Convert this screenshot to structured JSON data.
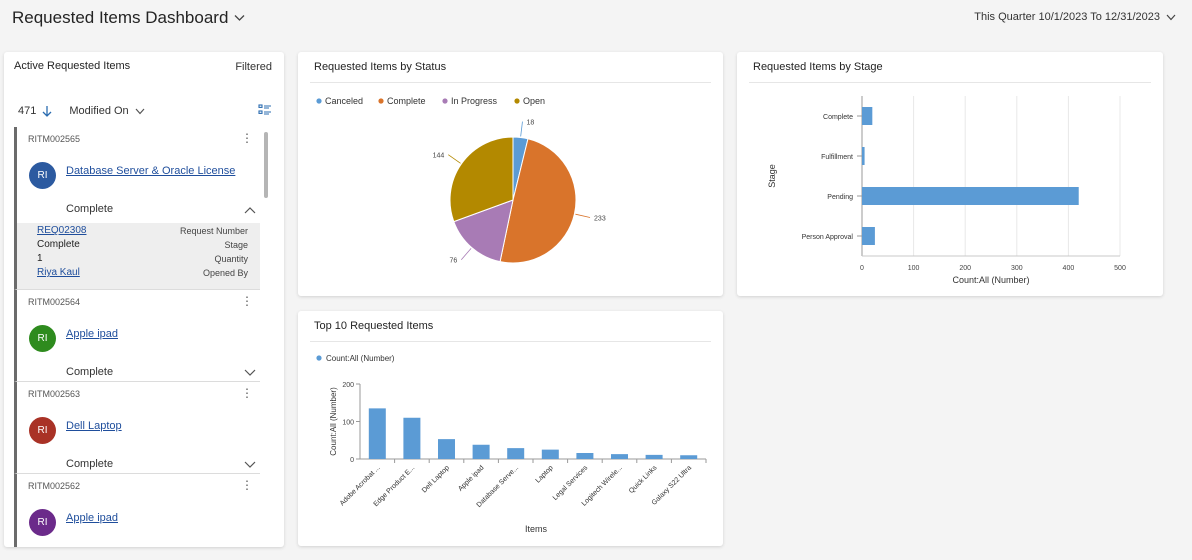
{
  "header": {
    "title": "Requested Items Dashboard",
    "date_range": "This Quarter 10/1/2023 To 12/31/2023"
  },
  "list": {
    "title": "Active Requested Items",
    "filter_label": "Filtered",
    "count": "471",
    "sort_field": "Modified On",
    "items": [
      {
        "number": "RITM002565",
        "initials": "RI",
        "avatar_color": "#2c5aa0",
        "title": "Database Server & Oracle License",
        "state": "Complete",
        "expanded": true,
        "details": [
          {
            "value": "REQ02308",
            "label": "Request Number",
            "link": true
          },
          {
            "value": "Complete",
            "label": "Stage",
            "link": false
          },
          {
            "value": "1",
            "label": "Quantity",
            "link": false
          },
          {
            "value": "Riya Kaul",
            "label": "Opened By",
            "link": true
          }
        ]
      },
      {
        "number": "RITM002564",
        "initials": "RI",
        "avatar_color": "#2e8b1e",
        "title": "Apple ipad",
        "state": "Complete",
        "expanded": false
      },
      {
        "number": "RITM002563",
        "initials": "RI",
        "avatar_color": "#a93226",
        "title": "Dell Laptop",
        "state": "Complete",
        "expanded": false
      },
      {
        "number": "RITM002562",
        "initials": "RI",
        "avatar_color": "#6b2a8a",
        "title": "Apple ipad",
        "state": "",
        "expanded": false
      }
    ]
  },
  "colors": {
    "bar": "#5b9bd5"
  },
  "chart_data": [
    {
      "type": "pie",
      "title": "Requested Items by Status",
      "categories": [
        "Canceled",
        "Complete",
        "In Progress",
        "Open"
      ],
      "values": [
        18,
        233,
        76,
        144
      ],
      "colors": [
        "#5b9bd5",
        "#d9742b",
        "#a87bb5",
        "#b38900"
      ],
      "legend": "top-left"
    },
    {
      "type": "bar",
      "orientation": "horizontal",
      "title": "Requested Items by Stage",
      "categories": [
        "Complete",
        "Fulfillment",
        "Pending",
        "Person Approval"
      ],
      "values": [
        20,
        5,
        420,
        25
      ],
      "xlabel": "Count:All (Number)",
      "ylabel": "Stage",
      "xlim": [
        0,
        500
      ],
      "xticks": [
        0,
        100,
        200,
        300,
        400,
        500
      ],
      "grid": true
    },
    {
      "type": "bar",
      "title": "Top 10 Requested Items",
      "categories": [
        "Adobe Acrobat ...",
        "Edge Product E...",
        "Dell Laptop",
        "Apple ipad",
        "Database Serve...",
        "Laptop",
        "Legal Services",
        "Logitech Wirele...",
        "Quick Links",
        "Galaxy S22 Ultra"
      ],
      "series": [
        {
          "name": "Count:All (Number)",
          "values": [
            135,
            110,
            53,
            38,
            29,
            25,
            16,
            13,
            11,
            10
          ]
        }
      ],
      "xlabel": "Items",
      "ylabel": "Count:All (Number)",
      "ylim": [
        0,
        200
      ],
      "yticks": [
        0,
        100,
        200
      ],
      "legend": "top-left"
    }
  ]
}
